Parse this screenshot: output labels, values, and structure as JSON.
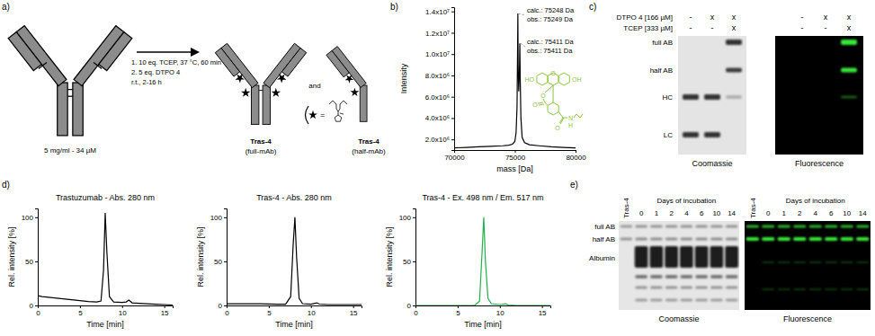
{
  "panel_labels": [
    "a)",
    "b)",
    "c)",
    "d)",
    "e)"
  ],
  "scheme": {
    "start_label": "5 mg/ml - 34 µM",
    "conditions": [
      "1. 10 eq. TCEP, 37 °C, 60 min",
      "2. 5 eq. DTPO 4",
      "r.t., 2-16 h"
    ],
    "products": [
      {
        "name": "Tras-4",
        "form": "(full-mAb)"
      },
      {
        "name": "Tras-4",
        "form": "(half-mAb)"
      }
    ],
    "conjunction": "and",
    "legend_symbol": "="
  },
  "chart_data": [
    {
      "type": "line",
      "x_label": "mass [Da]",
      "y_label": "Intensity",
      "color": "#000000",
      "x": [
        70000,
        71000,
        72000,
        73000,
        74000,
        74500,
        74800,
        75000,
        75100,
        75180,
        75230,
        75249,
        75270,
        75320,
        75380,
        75411,
        75440,
        75500,
        75600,
        75800,
        76200,
        77000,
        78000,
        79000,
        80000
      ],
      "values": [
        1200000,
        1250000,
        1300000,
        1350000,
        1400000,
        1450000,
        1550000,
        1800000,
        2600000,
        5000000,
        11000000,
        13800000,
        9000000,
        6500000,
        8500000,
        11000000,
        8000000,
        4000000,
        2200000,
        1700000,
        1500000,
        1400000,
        1300000,
        1250000,
        1200000
      ],
      "xlim": [
        70000,
        80000
      ],
      "xticks": [
        70000,
        75000,
        80000
      ],
      "ylim": [
        1000000,
        14400000
      ],
      "yticks": [
        {
          "value": 2000000,
          "label": "2.0x10⁶"
        },
        {
          "value": 4000000,
          "label": "4.0x10⁶"
        },
        {
          "value": 6000000,
          "label": "6.0x10⁶"
        },
        {
          "value": 8000000,
          "label": "8.0x10⁶"
        },
        {
          "value": 10000000,
          "label": "1.0x10⁷"
        },
        {
          "value": 12000000,
          "label": "1.2x10⁷"
        },
        {
          "value": 14000000,
          "label": "1.4x10⁷"
        }
      ],
      "annotations": [
        {
          "lines": [
            "calc.: 75248 Da",
            "obs.: 75249 Da"
          ],
          "x": 75249,
          "y": 13800000
        },
        {
          "lines": [
            "calc.: 75411 Da",
            "obs.: 75411 Da"
          ],
          "x": 75411,
          "y": 11000000
        }
      ],
      "structure": {
        "atoms": [
          "HO",
          "O",
          "OH",
          "O",
          "O",
          "O",
          "N",
          "H"
        ],
        "color": "#8dc63f"
      }
    },
    {
      "type": "line",
      "title": "Trastuzumab - Abs. 280 nm",
      "x_label": "Time [min]",
      "y_label": "Rel. intensity [%]",
      "color": "#000000",
      "x": [
        0,
        0.5,
        1,
        2,
        3,
        4,
        5,
        6,
        7,
        7.5,
        7.8,
        8,
        8.2,
        8.5,
        9,
        10,
        10.5,
        10.8,
        11.2,
        12,
        13,
        14,
        15,
        16
      ],
      "values": [
        11,
        10,
        9.5,
        8.5,
        7.5,
        6.5,
        5.5,
        4.5,
        4,
        5,
        40,
        105,
        60,
        10,
        4,
        3.5,
        4,
        6,
        3,
        2.5,
        2,
        1.5,
        1,
        0.5
      ],
      "xlim": [
        0,
        16
      ],
      "xticks": [
        0,
        5,
        10,
        15
      ],
      "ylim": [
        0,
        110
      ],
      "yticks": [
        0,
        50,
        100
      ]
    },
    {
      "type": "line",
      "title": "Tras-4 - Abs. 280 nm",
      "x_label": "Time [min]",
      "y_label": "Rel. intensity [%]",
      "color": "#000000",
      "x": [
        0,
        1,
        2,
        4,
        6,
        7,
        7.6,
        7.9,
        8.1,
        8.3,
        8.6,
        9,
        10,
        10.7,
        11,
        12,
        14,
        16
      ],
      "values": [
        2,
        2,
        2,
        2,
        1.5,
        1.5,
        10,
        70,
        100,
        55,
        8,
        2,
        1.5,
        3,
        1.5,
        1,
        1,
        1
      ],
      "xlim": [
        0,
        16
      ],
      "xticks": [
        0,
        5,
        10,
        15
      ],
      "ylim": [
        0,
        110
      ],
      "yticks": [
        0,
        50,
        100
      ]
    },
    {
      "type": "line",
      "title": "Tras-4 - Ex. 498 nm / Em. 517 nm",
      "x_label": "Time [min]",
      "y_label": "Rel. intensity [%]",
      "color": "#22b14c",
      "x": [
        0,
        2,
        4,
        6,
        7,
        7.6,
        7.9,
        8.1,
        8.3,
        8.6,
        9,
        10,
        10.7,
        11,
        12,
        14,
        16
      ],
      "values": [
        0,
        0,
        0,
        0,
        0,
        5,
        60,
        100,
        50,
        8,
        2,
        1,
        2,
        0.5,
        0,
        0,
        0
      ],
      "xlim": [
        0,
        16
      ],
      "xticks": [
        0,
        5,
        10,
        15
      ],
      "ylim": [
        0,
        110
      ],
      "yticks": [
        0,
        50,
        100
      ]
    }
  ],
  "gels": [
    {
      "conditions": [
        {
          "label": "DTPO 4 [166 µM]",
          "lanes": [
            "-",
            "x",
            "x",
            "-",
            "x",
            "x"
          ]
        },
        {
          "label": "TCEP [333 µM]",
          "lanes": [
            "-",
            "-",
            "x",
            "-",
            "-",
            "x"
          ]
        }
      ],
      "bands": [
        "full AB",
        "half AB",
        "HC",
        "LC"
      ],
      "stains": [
        "Coomassie",
        "Fluorescence"
      ]
    },
    {
      "reference_lane": "Tras-4",
      "header": "Days of incubation",
      "days": [
        0,
        1,
        2,
        4,
        6,
        10,
        14
      ],
      "bands": [
        "full AB",
        "half AB",
        "Albumin"
      ],
      "stains": [
        "Coomassie",
        "Fluorescence"
      ]
    }
  ]
}
